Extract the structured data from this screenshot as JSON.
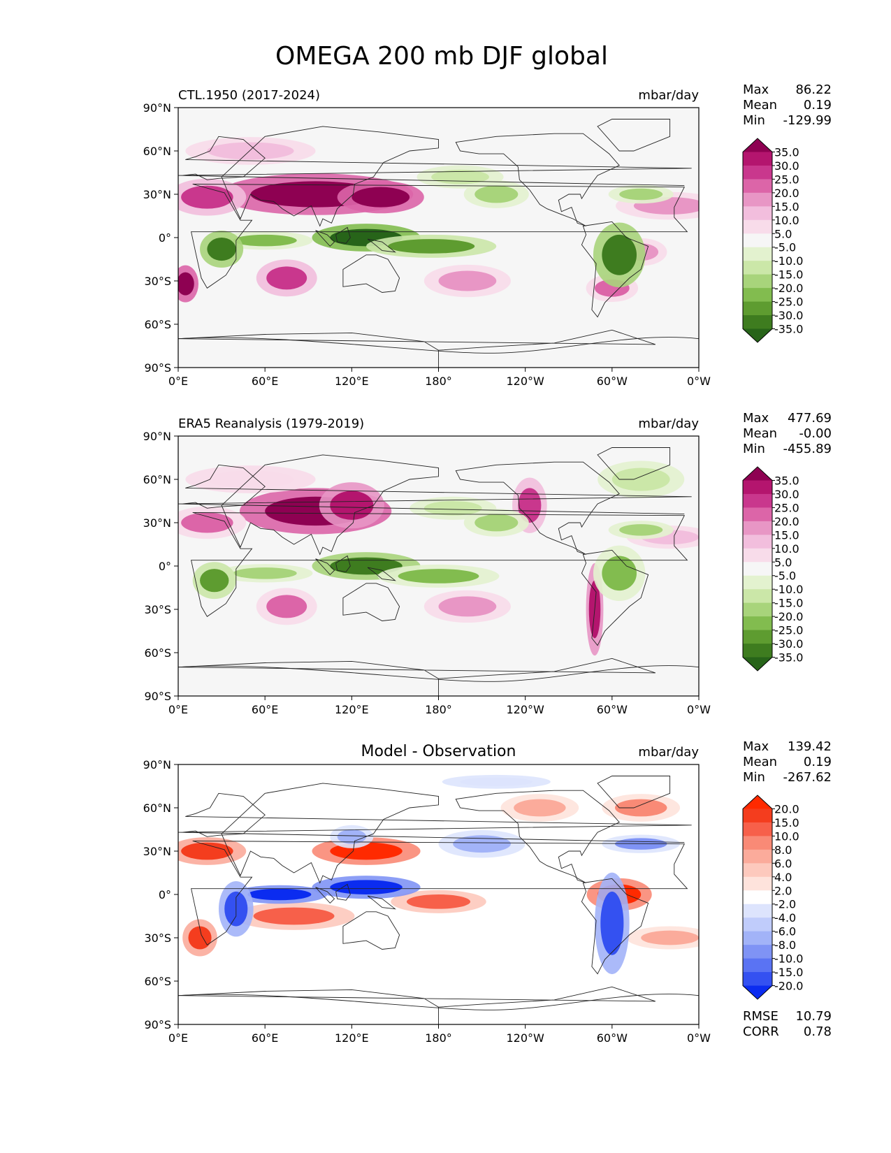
{
  "figure": {
    "title": "OMEGA 200 mb DJF global"
  },
  "axes": {
    "lat_ticks": [
      "90°N",
      "60°N",
      "30°N",
      "0°",
      "30°S",
      "60°S",
      "90°S"
    ],
    "lon_ticks": [
      "0°E",
      "60°E",
      "120°E",
      "180°",
      "120°W",
      "60°W",
      "0°W"
    ]
  },
  "panels": [
    {
      "id": "model",
      "left_title": "CTL.1950 (2017-2024)",
      "center_title": "",
      "units": "mbar/day",
      "stats": [
        {
          "label": "Max",
          "value": "86.22"
        },
        {
          "label": "Mean",
          "value": "0.19"
        },
        {
          "label": "Min",
          "value": "-129.99"
        }
      ],
      "colorbar_labels": [
        "35.0",
        "30.0",
        "25.0",
        "20.0",
        "15.0",
        "10.0",
        "5.0",
        "-5.0",
        "-10.0",
        "-15.0",
        "-20.0",
        "-25.0",
        "-30.0",
        "-35.0"
      ],
      "colorbar_colors": [
        "#8e0152",
        "#b4156e",
        "#c9378d",
        "#dc65a8",
        "#e896c5",
        "#f2bedd",
        "#f8dcea",
        "#f6f6f6",
        "#e3f2cf",
        "#cbe7a8",
        "#a8d47b",
        "#82bc4f",
        "#5e9c30",
        "#3e7c1f",
        "#276419"
      ]
    },
    {
      "id": "obs",
      "left_title": "ERA5 Reanalysis (1979-2019)",
      "center_title": "",
      "units": "mbar/day",
      "stats": [
        {
          "label": "Max",
          "value": "477.69"
        },
        {
          "label": "Mean",
          "value": "-0.00"
        },
        {
          "label": "Min",
          "value": "-455.89"
        }
      ],
      "colorbar_labels": [
        "35.0",
        "30.0",
        "25.0",
        "20.0",
        "15.0",
        "10.0",
        "5.0",
        "-5.0",
        "-10.0",
        "-15.0",
        "-20.0",
        "-25.0",
        "-30.0",
        "-35.0"
      ],
      "colorbar_colors": [
        "#8e0152",
        "#b4156e",
        "#c9378d",
        "#dc65a8",
        "#e896c5",
        "#f2bedd",
        "#f8dcea",
        "#f6f6f6",
        "#e3f2cf",
        "#cbe7a8",
        "#a8d47b",
        "#82bc4f",
        "#5e9c30",
        "#3e7c1f",
        "#276419"
      ]
    },
    {
      "id": "diff",
      "left_title": "",
      "center_title": "Model - Observation",
      "units": "mbar/day",
      "stats": [
        {
          "label": "Max",
          "value": "139.42"
        },
        {
          "label": "Mean",
          "value": "0.19"
        },
        {
          "label": "Min",
          "value": "-267.62"
        }
      ],
      "footer_stats": [
        {
          "label": "RMSE",
          "value": "10.79"
        },
        {
          "label": "CORR",
          "value": "0.78"
        }
      ],
      "colorbar_labels": [
        "20.0",
        "15.0",
        "10.0",
        "8.0",
        "6.0",
        "4.0",
        "2.0",
        "-2.0",
        "-4.0",
        "-6.0",
        "-8.0",
        "-10.0",
        "-15.0",
        "-20.0"
      ],
      "colorbar_colors": [
        "#ff2a00",
        "#f43d1e",
        "#f7604a",
        "#f98a76",
        "#fbab9b",
        "#fdc9bd",
        "#fee3dc",
        "#ffffff",
        "#dde4fd",
        "#c0ccfb",
        "#a2b3f8",
        "#7f93f5",
        "#5a73f3",
        "#3451f1",
        "#0b2cf0"
      ]
    }
  ]
}
